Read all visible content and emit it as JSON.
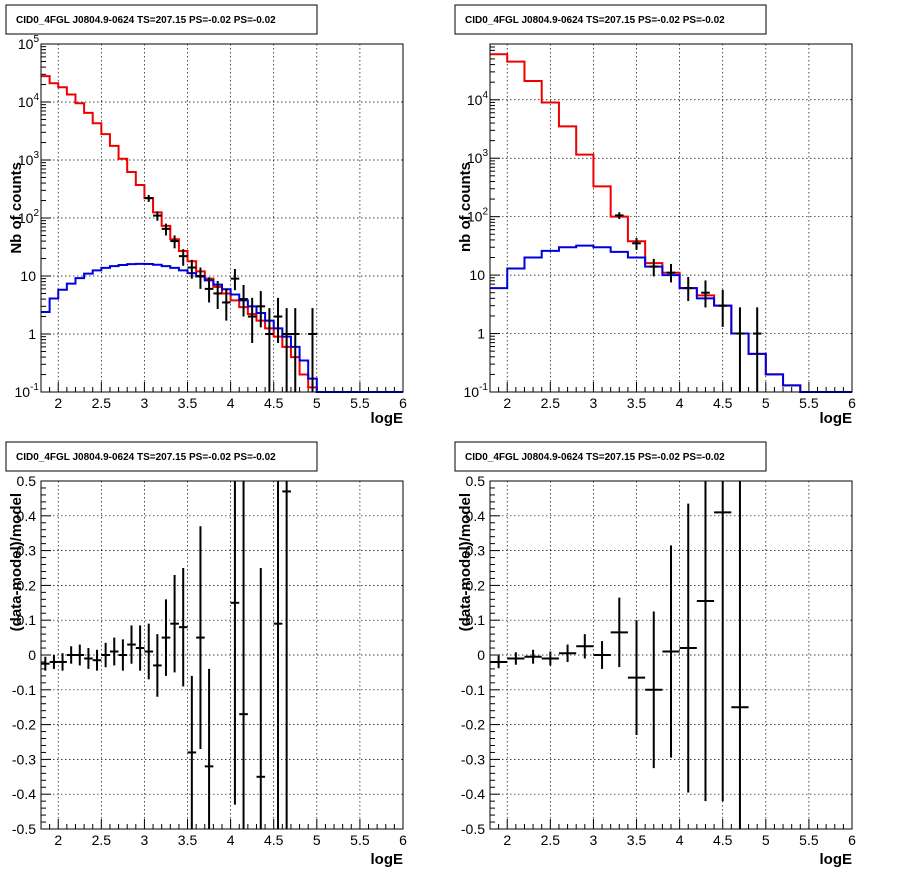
{
  "chart_data": [
    {
      "type": "step",
      "title": "CID0_4FGL J0804.9-0624 TS=207.15 PS=-0.02 PS=-0.02",
      "xlabel": "logE",
      "ylabel": "Nb of counts",
      "xlim": [
        1.8,
        6.0
      ],
      "ylim": [
        0.1,
        100000
      ],
      "yscale": "log",
      "grid": true,
      "xticks": [
        "2",
        "2.5",
        "3",
        "3.5",
        "4",
        "4.5",
        "5",
        "5.5",
        "6"
      ],
      "yticks": [
        "10^-1",
        "1",
        "10",
        "10^2",
        "10^3",
        "10^4",
        "10^5"
      ],
      "bin_edges": [
        1.8,
        1.9,
        2.0,
        2.1,
        2.2,
        2.3,
        2.4,
        2.5,
        2.6,
        2.7,
        2.8,
        2.9,
        3.0,
        3.1,
        3.2,
        3.3,
        3.4,
        3.5,
        3.6,
        3.7,
        3.8,
        3.9,
        4.0,
        4.1,
        4.2,
        4.3,
        4.4,
        4.5,
        4.6,
        4.7,
        4.8,
        4.9,
        5.0,
        5.1,
        5.2,
        5.3,
        5.4,
        5.5,
        5.6,
        5.7,
        5.8,
        5.9,
        6.0
      ],
      "series": [
        {
          "color": "#ee0000",
          "role": "total-model",
          "values": [
            28000,
            21000,
            18000,
            13500,
            9500,
            6500,
            4300,
            2800,
            1750,
            1050,
            620,
            370,
            220,
            125,
            73,
            43,
            27,
            18,
            12,
            9,
            6.5,
            5,
            3.8,
            2.9,
            2.2,
            1.7,
            1.25,
            0.9,
            0.6,
            0.4,
            0.2,
            0.12,
            0.1,
            0.1,
            0.1,
            0.1,
            0.1,
            0.1,
            0.1,
            0.1,
            0.1,
            0.1
          ]
        },
        {
          "color": "#0000dd",
          "role": "source-model",
          "values": [
            2.4,
            4.1,
            5.8,
            7.4,
            9.2,
            11,
            12.5,
            13.8,
            14.8,
            15.5,
            16,
            16.2,
            16.1,
            15.6,
            14.8,
            13.8,
            12.5,
            11.2,
            9.8,
            8.4,
            7.1,
            5.9,
            4.8,
            3.8,
            3,
            2.3,
            1.7,
            1.25,
            0.9,
            0.6,
            0.35,
            0.17,
            0.1,
            0.1,
            0.1,
            0.1,
            0.1,
            0.1,
            0.1,
            0.1,
            0.1,
            0.1
          ]
        }
      ],
      "points": [
        {
          "x": 3.05,
          "y": 220,
          "yerr": [
            30,
            30
          ]
        },
        {
          "x": 3.15,
          "y": 110,
          "yerr": [
            20,
            20
          ]
        },
        {
          "x": 3.25,
          "y": 65,
          "yerr": [
            15,
            15
          ]
        },
        {
          "x": 3.35,
          "y": 40,
          "yerr": [
            10,
            10
          ]
        },
        {
          "x": 3.45,
          "y": 22,
          "yerr": [
            7,
            7
          ]
        },
        {
          "x": 3.55,
          "y": 14,
          "yerr": [
            5,
            5
          ]
        },
        {
          "x": 3.65,
          "y": 10,
          "yerr": [
            4,
            4
          ]
        },
        {
          "x": 3.75,
          "y": 6,
          "yerr": [
            2.5,
            3.5
          ]
        },
        {
          "x": 3.85,
          "y": 5,
          "yerr": [
            2.3,
            3.2
          ]
        },
        {
          "x": 3.95,
          "y": 3.5,
          "yerr": [
            1.8,
            2.6
          ]
        },
        {
          "x": 4.05,
          "y": 9,
          "yerr": [
            3.3,
            4.2
          ]
        },
        {
          "x": 4.15,
          "y": 4,
          "yerr": [
            2,
            3
          ]
        },
        {
          "x": 4.25,
          "y": 2,
          "yerr": [
            1.3,
            2.2
          ]
        },
        {
          "x": 4.35,
          "y": 3,
          "yerr": [
            1.7,
            2.5
          ]
        },
        {
          "x": 4.45,
          "y": 1,
          "yerr": [
            0.9,
            1.8
          ]
        },
        {
          "x": 4.55,
          "y": 2,
          "yerr": [
            1.3,
            2.2
          ]
        },
        {
          "x": 4.65,
          "y": 1,
          "yerr": [
            0.9,
            1.8
          ]
        },
        {
          "x": 4.75,
          "y": 1,
          "yerr": [
            0.9,
            1.8
          ]
        },
        {
          "x": 4.95,
          "y": 1,
          "yerr": [
            0.9,
            1.8
          ]
        }
      ]
    },
    {
      "type": "step",
      "title": "CID0_4FGL J0804.9-0624 TS=207.15 PS=-0.02 PS=-0.02",
      "xlabel": "logE",
      "ylabel": "nb of counts",
      "xlim": [
        1.8,
        6.0
      ],
      "ylim": [
        0.1,
        90000
      ],
      "yscale": "log",
      "grid": true,
      "xticks": [
        "2",
        "2.5",
        "3",
        "3.5",
        "4",
        "4.5",
        "5",
        "5.5",
        "6"
      ],
      "yticks": [
        "10^-1",
        "1",
        "10",
        "10^2",
        "10^3",
        "10^4"
      ],
      "bin_edges": [
        1.8,
        2.0,
        2.2,
        2.4,
        2.6,
        2.8,
        3.0,
        3.2,
        3.4,
        3.6,
        3.8,
        4.0,
        4.2,
        4.4,
        4.6,
        4.8,
        5.0,
        5.2,
        5.4,
        5.6,
        5.8,
        6.0
      ],
      "series": [
        {
          "color": "#ee0000",
          "role": "total-model",
          "values": [
            60000,
            45000,
            21000,
            9000,
            3500,
            1150,
            330,
            100,
            38,
            16,
            11,
            6,
            4.5,
            3,
            1,
            0.45,
            0.2,
            0.13,
            0.1,
            0.1,
            0.1
          ]
        },
        {
          "color": "#0000dd",
          "role": "source-model",
          "values": [
            6,
            13,
            20,
            26,
            30,
            32,
            30,
            25,
            20,
            14,
            10,
            6,
            4,
            3,
            1,
            0.45,
            0.2,
            0.13,
            0.1,
            0.1,
            0.1
          ]
        }
      ],
      "points": [
        {
          "x": 3.3,
          "y": 105,
          "yerr": [
            14,
            14
          ]
        },
        {
          "x": 3.5,
          "y": 35,
          "yerr": [
            8,
            8
          ]
        },
        {
          "x": 3.7,
          "y": 14,
          "yerr": [
            4.5,
            5
          ]
        },
        {
          "x": 3.9,
          "y": 11,
          "yerr": [
            3.5,
            4.5
          ]
        },
        {
          "x": 4.1,
          "y": 6,
          "yerr": [
            2.4,
            3.3
          ]
        },
        {
          "x": 4.3,
          "y": 5,
          "yerr": [
            2.2,
            3.1
          ]
        },
        {
          "x": 4.5,
          "y": 3,
          "yerr": [
            1.7,
            2.6
          ]
        },
        {
          "x": 4.7,
          "y": 1,
          "yerr": [
            0.9,
            1.8
          ]
        },
        {
          "x": 4.9,
          "y": 1,
          "yerr": [
            0.9,
            1.8
          ]
        }
      ]
    },
    {
      "type": "scatter",
      "title": "CID0_4FGL J0804.9-0624 TS=207.15 PS=-0.02 PS=-0.02",
      "xlabel": "logE",
      "ylabel": "(data-model)/model",
      "xlim": [
        1.8,
        6.0
      ],
      "ylim": [
        -0.5,
        0.5
      ],
      "grid": true,
      "xticks": [
        "2",
        "2.5",
        "3",
        "3.5",
        "4",
        "4.5",
        "5",
        "5.5",
        "6"
      ],
      "yticks": [
        "-0.5",
        "-0.4",
        "-0.3",
        "-0.2",
        "-0.1",
        "0",
        "0.1",
        "0.2",
        "0.3",
        "0.4",
        "0.5"
      ],
      "xerr": 0.05,
      "points": [
        {
          "x": 1.85,
          "y": -0.025,
          "yerr": 0.02
        },
        {
          "x": 1.95,
          "y": -0.02,
          "yerr": 0.02
        },
        {
          "x": 2.05,
          "y": -0.02,
          "yerr": 0.025
        },
        {
          "x": 2.15,
          "y": 0.0,
          "yerr": 0.025
        },
        {
          "x": 2.25,
          "y": 0.0,
          "yerr": 0.03
        },
        {
          "x": 2.35,
          "y": -0.01,
          "yerr": 0.03
        },
        {
          "x": 2.45,
          "y": -0.015,
          "yerr": 0.03
        },
        {
          "x": 2.55,
          "y": 0.0,
          "yerr": 0.035
        },
        {
          "x": 2.65,
          "y": 0.01,
          "yerr": 0.04
        },
        {
          "x": 2.75,
          "y": 0.0,
          "yerr": 0.045
        },
        {
          "x": 2.85,
          "y": 0.03,
          "yerr": 0.055
        },
        {
          "x": 2.95,
          "y": 0.02,
          "yerr": 0.065
        },
        {
          "x": 3.05,
          "y": 0.01,
          "yerr": 0.08
        },
        {
          "x": 3.15,
          "y": -0.03,
          "yerr": 0.09
        },
        {
          "x": 3.25,
          "y": 0.05,
          "yerr": 0.11
        },
        {
          "x": 3.35,
          "y": 0.09,
          "yerr": 0.14
        },
        {
          "x": 3.45,
          "y": 0.08,
          "yerr": 0.17
        },
        {
          "x": 3.55,
          "y": -0.28,
          "yerr": 0.22
        },
        {
          "x": 3.65,
          "y": 0.05,
          "yerr": 0.32
        },
        {
          "x": 3.75,
          "y": -0.32,
          "yerr": 0.28
        },
        {
          "x": 4.05,
          "y": 0.15,
          "yerr": 0.58
        },
        {
          "x": 4.15,
          "y": -0.17,
          "yerr": 0.75
        },
        {
          "x": 4.35,
          "y": -0.35,
          "yerr": 0.6
        },
        {
          "x": 4.55,
          "y": 0.09,
          "yerr": 1.0
        },
        {
          "x": 4.65,
          "y": 0.47,
          "yerr": 1.5
        }
      ]
    },
    {
      "type": "scatter",
      "title": "CID0_4FGL J0804.9-0624 TS=207.15 PS=-0.02 PS=-0.02",
      "xlabel": "logE",
      "ylabel": "(data-model)/model",
      "xlim": [
        1.8,
        6.0
      ],
      "ylim": [
        -0.5,
        0.5
      ],
      "grid": true,
      "xticks": [
        "2",
        "2.5",
        "3",
        "3.5",
        "4",
        "4.5",
        "5",
        "5.5",
        "6"
      ],
      "yticks": [
        "-0.5",
        "-0.4",
        "-0.3",
        "-0.2",
        "-0.1",
        "0",
        "0.1",
        "0.2",
        "0.3",
        "0.4",
        "0.5"
      ],
      "xerr": 0.1,
      "points": [
        {
          "x": 1.9,
          "y": -0.02,
          "yerr": 0.018
        },
        {
          "x": 2.1,
          "y": -0.01,
          "yerr": 0.018
        },
        {
          "x": 2.3,
          "y": -0.005,
          "yerr": 0.02
        },
        {
          "x": 2.5,
          "y": -0.01,
          "yerr": 0.02
        },
        {
          "x": 2.7,
          "y": 0.005,
          "yerr": 0.025
        },
        {
          "x": 2.9,
          "y": 0.025,
          "yerr": 0.035
        },
        {
          "x": 3.1,
          "y": 0.0,
          "yerr": 0.04
        },
        {
          "x": 3.3,
          "y": 0.065,
          "yerr": 0.1
        },
        {
          "x": 3.5,
          "y": -0.065,
          "yerr": 0.165
        },
        {
          "x": 3.7,
          "y": -0.1,
          "yerr": 0.225
        },
        {
          "x": 3.9,
          "y": 0.01,
          "yerr": 0.305
        },
        {
          "x": 4.1,
          "y": 0.02,
          "yerr": 0.415
        },
        {
          "x": 4.3,
          "y": 0.155,
          "yerr": 0.575
        },
        {
          "x": 4.5,
          "y": 0.41,
          "yerr": 0.83
        },
        {
          "x": 4.7,
          "y": -0.15,
          "yerr": 1.0
        }
      ]
    }
  ]
}
